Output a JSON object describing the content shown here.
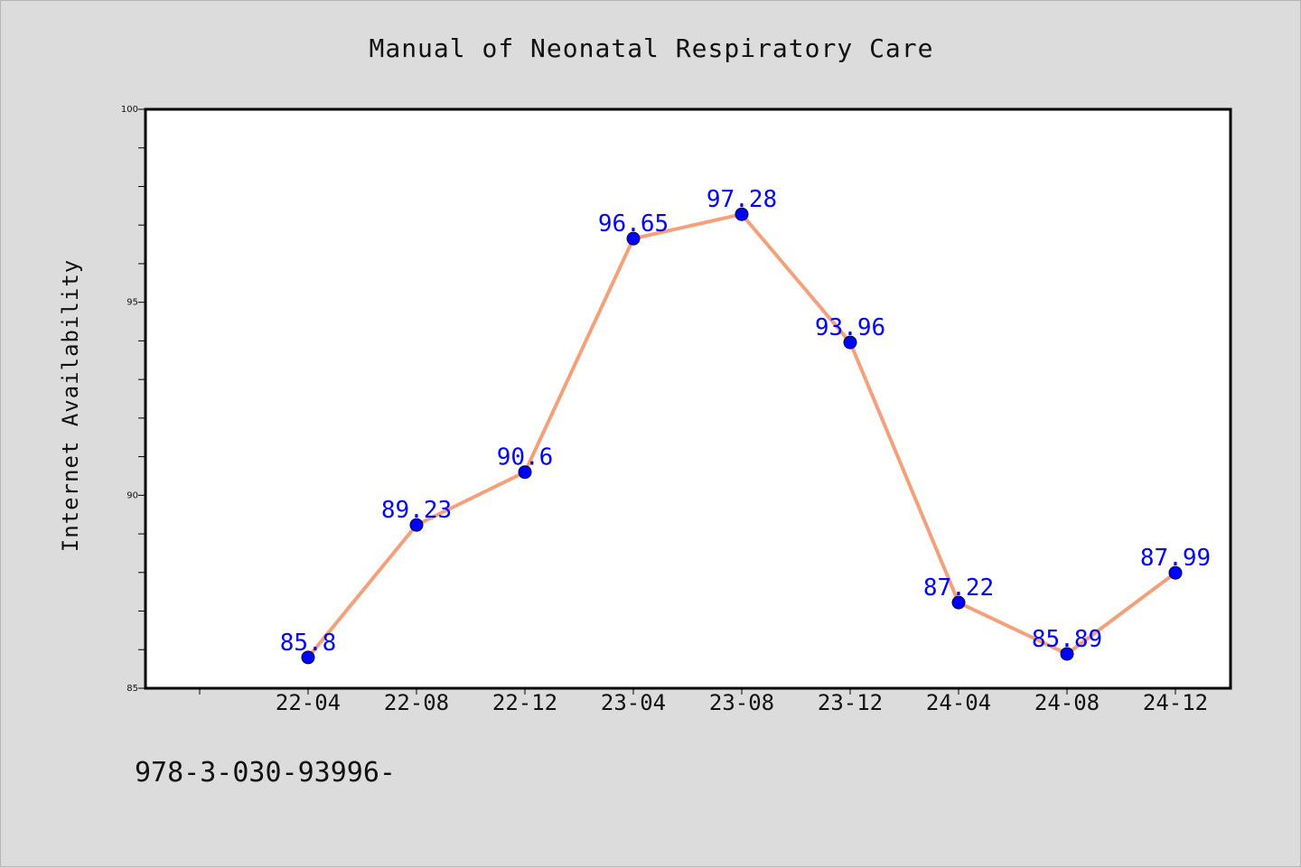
{
  "chart_data": {
    "type": "line",
    "title": "Manual of Neonatal Respiratory Care",
    "xlabel": "",
    "ylabel": "Internet Availability",
    "categories": [
      "22-04",
      "22-08",
      "22-12",
      "23-04",
      "23-08",
      "23-12",
      "24-04",
      "24-08",
      "24-12"
    ],
    "series": [
      {
        "values": [
          85.8,
          89.23,
          90.6,
          96.65,
          97.28,
          93.96,
          87.22,
          85.89,
          87.99
        ]
      }
    ],
    "data_labels": [
      "85.8",
      "89.23",
      "90.6",
      "96.65",
      "97.28",
      "93.96",
      "87.22",
      "85.89",
      "87.99"
    ],
    "ylim": [
      85,
      100
    ],
    "yticks": [
      "85",
      "90",
      "95",
      "100"
    ],
    "grid": false,
    "line_color": "#f4a07a",
    "marker_color": "#0000ff",
    "label_color": "#0000ff",
    "background_color": "#dcdcdc",
    "plot_background": "#ffffff"
  },
  "footer_text": "978-3-030-93996-"
}
